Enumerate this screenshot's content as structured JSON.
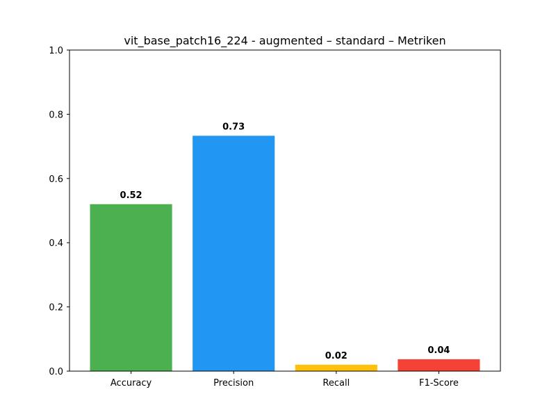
{
  "chart_data": {
    "type": "bar",
    "title": "vit_base_patch16_224 - augmented – standard – Metriken",
    "xlabel": "",
    "ylabel": "",
    "categories": [
      "Accuracy",
      "Precision",
      "Recall",
      "F1-Score"
    ],
    "values": [
      0.52,
      0.733,
      0.02,
      0.037
    ],
    "value_labels": [
      "0.52",
      "0.73",
      "0.02",
      "0.04"
    ],
    "colors": [
      "#4caf50",
      "#2196f3",
      "#ffc107",
      "#f44336"
    ],
    "ylim": [
      0,
      1.0
    ],
    "yticks": [
      0.0,
      0.2,
      0.4,
      0.6,
      0.8,
      1.0
    ],
    "ytick_labels": [
      "0.0",
      "0.2",
      "0.4",
      "0.6",
      "0.8",
      "1.0"
    ],
    "grid": false,
    "legend": "none"
  }
}
